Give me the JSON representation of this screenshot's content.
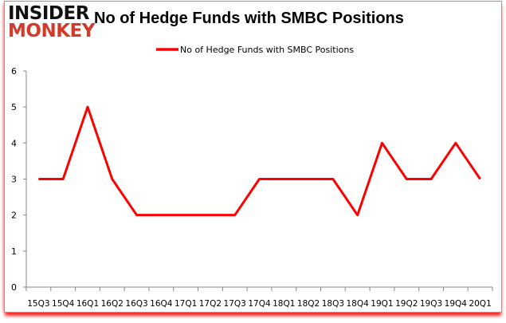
{
  "logo": {
    "line1": "INSIDER",
    "line2": "MONKEY"
  },
  "chart_data": {
    "type": "line",
    "title": "No of Hedge Funds with SMBC Positions",
    "categories": [
      "15Q3",
      "15Q4",
      "16Q1",
      "16Q2",
      "16Q3",
      "16Q4",
      "17Q1",
      "17Q2",
      "17Q3",
      "17Q4",
      "18Q1",
      "18Q2",
      "18Q3",
      "18Q4",
      "19Q1",
      "19Q2",
      "19Q3",
      "19Q4",
      "20Q1"
    ],
    "series": [
      {
        "name": "No of Hedge Funds with SMBC Positions",
        "color": "#ff0000",
        "values": [
          3,
          3,
          5,
          3,
          2,
          2,
          2,
          2,
          2,
          3,
          3,
          3,
          3,
          2,
          4,
          3,
          3,
          4,
          3
        ]
      }
    ],
    "ylim": [
      0,
      6
    ],
    "yticks": [
      0,
      1,
      2,
      3,
      4,
      5,
      6
    ],
    "grid": false,
    "legend": "top-center"
  }
}
